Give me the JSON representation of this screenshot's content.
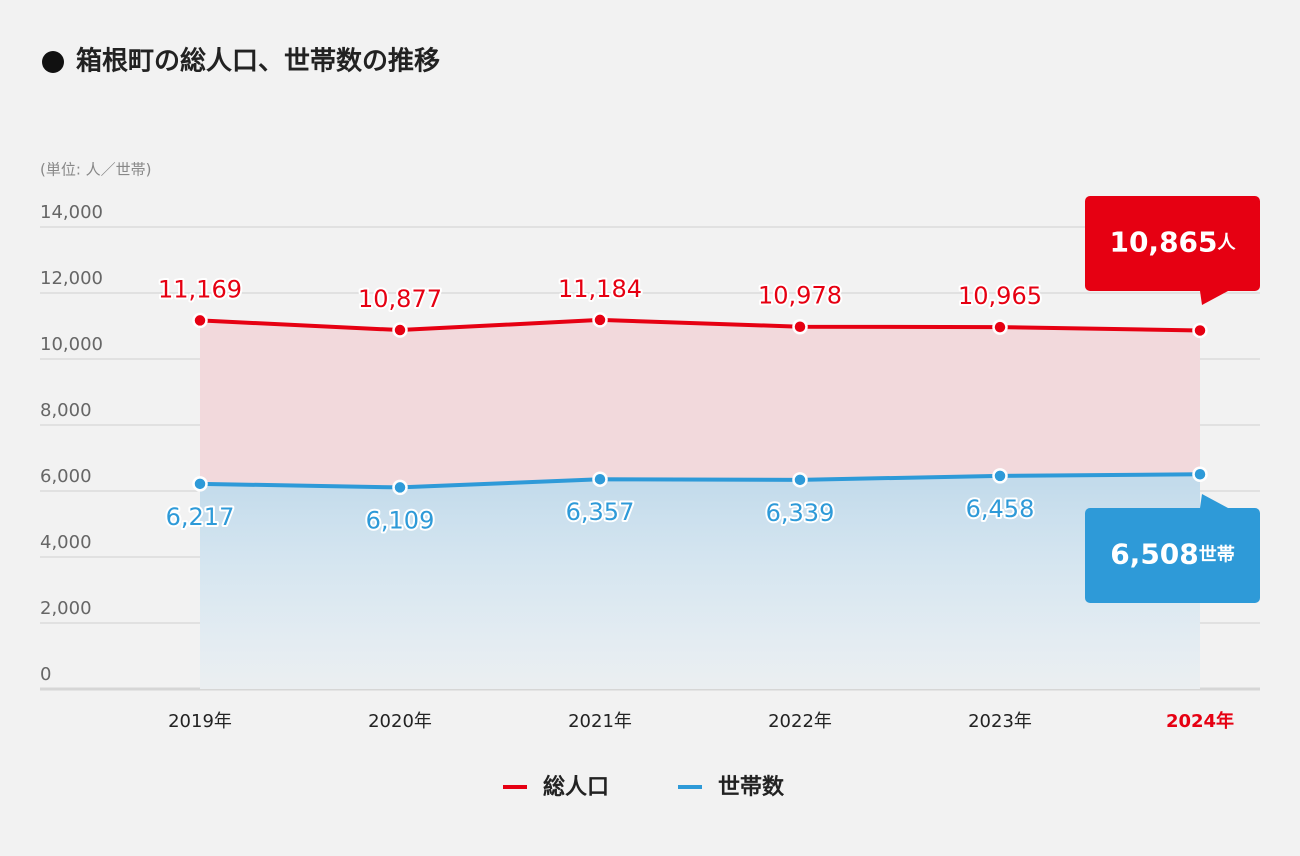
{
  "chart_data": {
    "type": "line",
    "title": "箱根町の総人口、世帯数の推移",
    "unit_label": "(単位: 人／世帯)",
    "categories": [
      "2019年",
      "2020年",
      "2021年",
      "2022年",
      "2023年",
      "2024年"
    ],
    "series": [
      {
        "name": "総人口",
        "color": "#e60012",
        "area_color": "#f2d9dc",
        "unit": "人",
        "values": [
          11169,
          10877,
          11184,
          10978,
          10965,
          10865
        ],
        "value_labels": [
          "11,169",
          "10,877",
          "11,184",
          "10,978",
          "10,965",
          "10,865"
        ]
      },
      {
        "name": "世帯数",
        "color": "#2e9ad8",
        "area_color": "#c3dbeb",
        "unit": "世帯",
        "values": [
          6217,
          6109,
          6357,
          6339,
          6458,
          6508
        ],
        "value_labels": [
          "6,217",
          "6,109",
          "6,357",
          "6,339",
          "6,458",
          "6,508"
        ]
      }
    ],
    "ylim": [
      0,
      14000
    ],
    "yticks": [
      0,
      {
        "value": 2000,
        "label": "2,000"
      },
      {
        "value": 4000,
        "label": "4,000"
      },
      {
        "value": 6000,
        "label": "6,000"
      },
      {
        "value": 8000,
        "label": "8,000"
      },
      {
        "value": 10000,
        "label": "10,000"
      },
      {
        "value": 12000,
        "label": "12,000"
      },
      {
        "value": 14000,
        "label": "14,000"
      }
    ],
    "grid": true
  }
}
